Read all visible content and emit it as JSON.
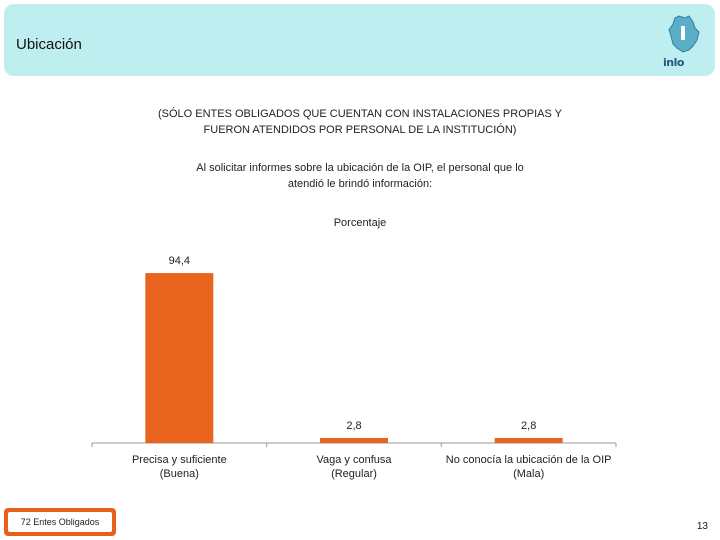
{
  "header": {
    "title": "Ubicación",
    "logo_text": "inlo"
  },
  "subtitle_lines": [
    "(SÓLO ENTES OBLIGADOS QUE CUENTAN CON INSTALACIONES PROPIAS Y",
    "FUERON ATENDIDOS POR PERSONAL DE LA INSTITUCIÓN)"
  ],
  "question_lines": [
    "Al solicitar informes sobre la ubicación de la OIP, el personal que lo",
    "atendió le brindó información:"
  ],
  "chart_data": {
    "type": "bar",
    "series_title": "Porcentaje",
    "categories": [
      [
        "Precisa y suficiente",
        "(Buena)"
      ],
      [
        "Vaga y confusa",
        "(Regular)"
      ],
      [
        "No conocía la ubicación de la OIP",
        "(Mala)"
      ]
    ],
    "values": [
      94.4,
      2.8,
      2.8
    ],
    "value_labels": [
      "94,4",
      "2,8",
      "2,8"
    ],
    "ylim": [
      0,
      100
    ],
    "bar_color": "#e8641e"
  },
  "footer": {
    "sample_label": "72 Entes Obligados",
    "page_number": "13"
  },
  "colors": {
    "header_bg": "#bfeef0",
    "accent": "#e8601c"
  }
}
